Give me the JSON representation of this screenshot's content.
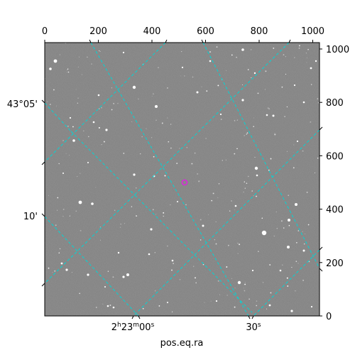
{
  "figure": {
    "xlabel": "pos.eq.ra",
    "ra_ticks": [
      {
        "label": "2h23m00s",
        "main": "2",
        "h": "h",
        "mid": "23",
        "m": "m",
        "tail": "00",
        "s": "s"
      },
      {
        "label": "30s",
        "main": "30",
        "s": "s"
      }
    ],
    "dec_ticks": [
      {
        "label": "43°05'"
      },
      {
        "label": "10'"
      }
    ],
    "pixel_x_ticks": [
      "0",
      "200",
      "400",
      "600",
      "800",
      "1000"
    ],
    "pixel_y_ticks": [
      "0",
      "200",
      "400",
      "600",
      "800",
      "1000"
    ],
    "colors": {
      "grid": "#00d6d6",
      "marker": "#e020e0",
      "background_sky": "#7a7a7a"
    }
  }
}
